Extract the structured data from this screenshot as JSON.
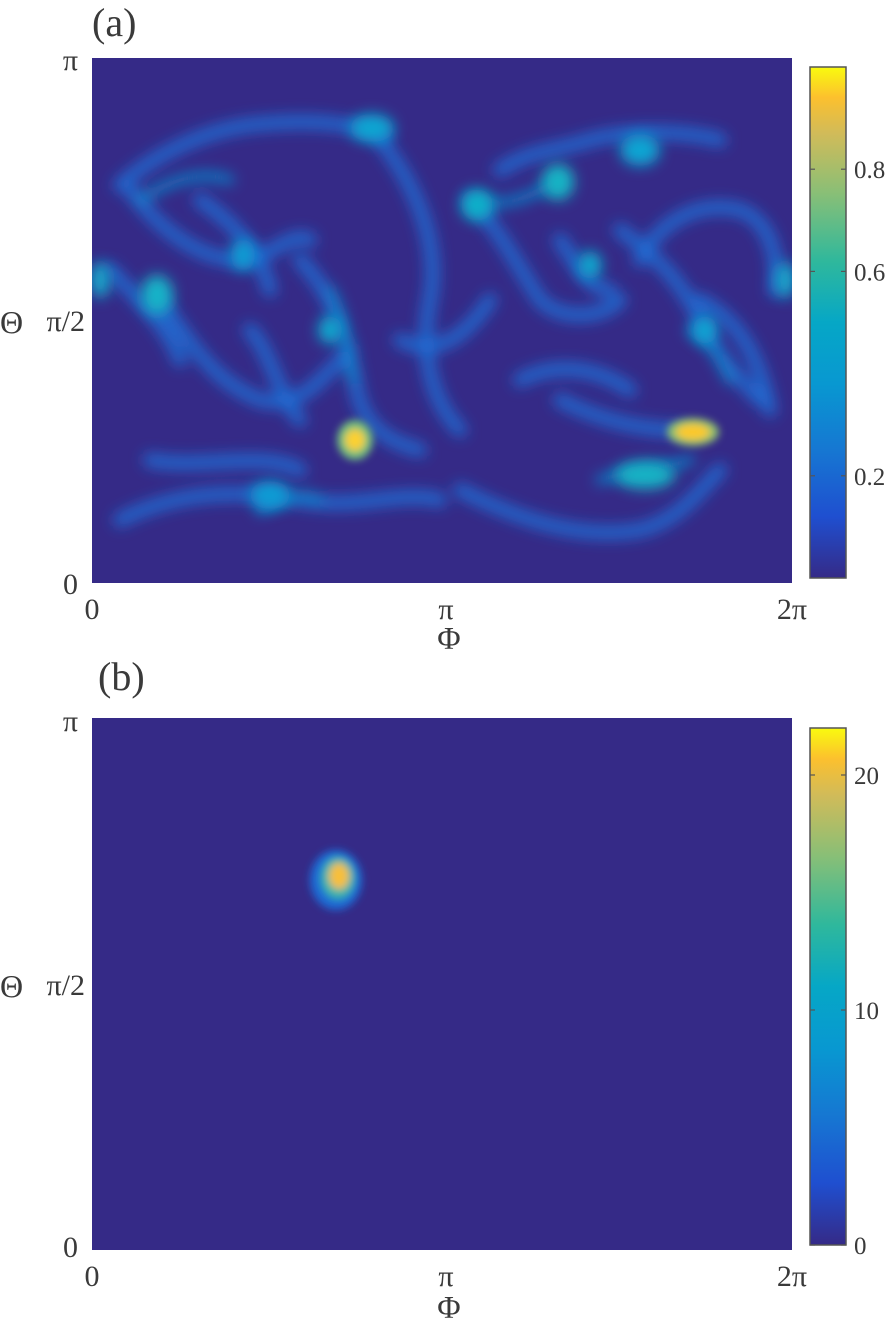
{
  "chart_data": [
    {
      "type": "heatmap",
      "panel_label": "(a)",
      "xlabel": "Φ",
      "ylabel": "Θ",
      "xlim": [
        0,
        6.2832
      ],
      "ylim": [
        0,
        3.1416
      ],
      "x_ticks": [
        "0",
        "π",
        "2π"
      ],
      "y_ticks": [
        "0",
        "π/2",
        "π"
      ],
      "grid": false,
      "colormap": "parula",
      "colorbar": {
        "range": [
          0,
          1.0
        ],
        "ticks": [
          0.2,
          0.6,
          0.8
        ],
        "tick_labels": [
          "0.2",
          "0.6",
          "0.8"
        ]
      },
      "description_values": {
        "background_level": 0.02,
        "peaks": [
          {
            "phi": 2.2,
            "theta": 1.11,
            "value": 0.95
          },
          {
            "phi": 5.02,
            "theta": 1.19,
            "value": 0.97
          },
          {
            "phi": 4.82,
            "theta": 0.84,
            "value": 0.55
          },
          {
            "phi": 0.56,
            "theta": 1.76,
            "value": 0.45
          },
          {
            "phi": 3.25,
            "theta": 2.23,
            "value": 0.45
          },
          {
            "phi": 3.98,
            "theta": 2.39,
            "value": 0.45
          },
          {
            "phi": 4.76,
            "theta": 2.56,
            "value": 0.42
          },
          {
            "phi": 2.6,
            "theta": 2.74,
            "value": 0.42
          }
        ]
      }
    },
    {
      "type": "heatmap",
      "panel_label": "(b)",
      "xlabel": "Φ",
      "ylabel": "Θ",
      "xlim": [
        0,
        6.2832
      ],
      "ylim": [
        0,
        3.1416
      ],
      "x_ticks": [
        "0",
        "π",
        "2π"
      ],
      "y_ticks": [
        "0",
        "π/2",
        "π"
      ],
      "grid": false,
      "colormap": "parula",
      "colorbar": {
        "range": [
          0,
          22
        ],
        "ticks": [
          0,
          10,
          20
        ],
        "tick_labels": [
          "0",
          "10",
          "20"
        ]
      },
      "description_values": {
        "background_level": 0,
        "peaks": [
          {
            "phi": 2.06,
            "theta": 2.19,
            "value": 22
          }
        ]
      }
    }
  ]
}
